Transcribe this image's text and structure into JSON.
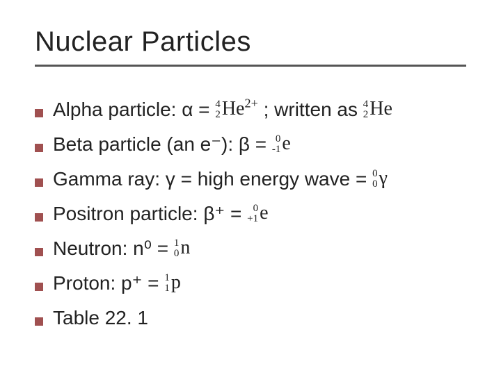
{
  "slide": {
    "background_color": "#ffffff",
    "text_color": "#222222",
    "title": {
      "text": "Nuclear Particles",
      "font_size": 40,
      "font_weight": 400,
      "color": "#222222",
      "underline_color": "#555555",
      "underline_thickness": 3
    },
    "bullet_style": {
      "shape": "square",
      "size": 12,
      "color": "#a05050"
    },
    "body_font_size": 28,
    "nuclide_font_family": "Times New Roman",
    "nuclide_script_font_size": 15,
    "items": [
      {
        "pre": "Alpha particle: α = ",
        "n1": {
          "mass": "4",
          "charge": "2",
          "symbol": "He",
          "post_sup": "2+"
        },
        "mid": "; written as ",
        "n2": {
          "mass": "4",
          "charge": "2",
          "symbol": "He"
        }
      },
      {
        "pre": "Beta particle (an e⁻): β = ",
        "n1": {
          "mass": "0",
          "charge": "-1",
          "symbol": "e"
        }
      },
      {
        "pre": "Gamma ray: γ = high energy wave = ",
        "n1": {
          "mass": "0",
          "charge": "0",
          "symbol": "γ"
        }
      },
      {
        "pre": "Positron particle: β⁺ = ",
        "n1": {
          "mass": "0",
          "charge": "+1",
          "symbol": "e"
        }
      },
      {
        "pre": "Neutron: n⁰ = ",
        "n1": {
          "mass": "1",
          "charge": "0",
          "symbol": "n"
        }
      },
      {
        "pre": "Proton: p⁺ = ",
        "n1": {
          "mass": "1",
          "charge": "1",
          "symbol": "p"
        }
      },
      {
        "pre": "Table 22. 1"
      }
    ]
  }
}
